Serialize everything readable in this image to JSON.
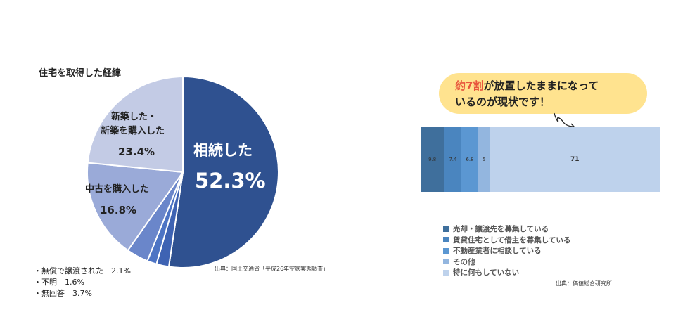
{
  "chart_data": [
    {
      "type": "pie",
      "title": "住宅を取得した経緯",
      "slices": [
        {
          "name": "相続した",
          "value": 52.3,
          "color": "#2f5190"
        },
        {
          "name": "無償で譲渡された",
          "value": 2.1,
          "color": "#3e63b3"
        },
        {
          "name": "不明",
          "value": 1.6,
          "color": "#4d74c4"
        },
        {
          "name": "無回答",
          "value": 3.7,
          "color": "#6a86ca"
        },
        {
          "name": "中古を購入した",
          "value": 16.8,
          "color": "#9aaad8"
        },
        {
          "name": "新築した・新築を購入した",
          "value": 23.4,
          "color": "#c3cbe5"
        }
      ],
      "labels": {
        "a_name": "相続した",
        "a_pct": "52.3%",
        "d_line1": "新築した・",
        "d_line2": "新築を購入した",
        "d_pct": "23.4%",
        "c_name": "中古を購入した",
        "c_pct": "16.8%"
      },
      "notes": [
        "・無償で譲渡された　2.1%",
        "・不明　1.6%",
        "・無回答　3.7%"
      ],
      "source": "出典：国土交通省「平成26年空家実態調査」"
    },
    {
      "type": "bar",
      "orientation": "horizontal-stacked",
      "callout": {
        "highlight": "約7割",
        "line1_rest": "が放置したままになって",
        "line2": "いるのが現状です！"
      },
      "series": [
        {
          "name": "売却・譲渡先を募集している",
          "value": 9.8,
          "label": "9.8",
          "color": "#3f6f9c"
        },
        {
          "name": "賃貸住宅として借主を募集している",
          "value": 7.4,
          "label": "7.4",
          "color": "#4a85bf"
        },
        {
          "name": "不動産業者に相談している",
          "value": 6.8,
          "label": "6.8",
          "color": "#5b97d2"
        },
        {
          "name": "その他",
          "value": 5,
          "label": "5",
          "color": "#93b6df"
        },
        {
          "name": "特に何もしていない",
          "value": 71,
          "label": "71",
          "color": "#bed2ec"
        }
      ],
      "source": "出典：価値総合研究所"
    }
  ]
}
